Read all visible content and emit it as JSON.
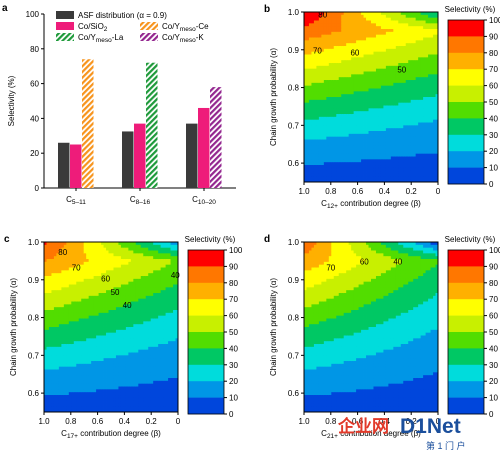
{
  "chart_data": [
    {
      "panel": "a",
      "type": "bar",
      "ylabel": "Selectivity (%)",
      "ylim": [
        0,
        100
      ],
      "yticks": [
        0,
        20,
        40,
        60,
        80,
        100
      ],
      "categories": [
        "C5–11",
        "C8–16",
        "C10–20"
      ],
      "series": [
        {
          "name": "ASF distribution (α = 0.9)",
          "color": "#3a3a3a",
          "pattern": "solid",
          "values": [
            26,
            32.5,
            37
          ]
        },
        {
          "name": "Co/SiO2",
          "color": "#ee1c7a",
          "pattern": "solid",
          "values": [
            25,
            37,
            46
          ]
        },
        {
          "name": "Co/Ymeso-Ce",
          "color": "#f7941d",
          "pattern": "hatch",
          "values": [
            74,
            null,
            null
          ]
        },
        {
          "name": "Co/Ymeso-La",
          "color": "#1e9a3a",
          "pattern": "hatch",
          "values": [
            null,
            72,
            null
          ]
        },
        {
          "name": "Co/Ymeso-K",
          "color": "#93268f",
          "pattern": "hatch",
          "values": [
            null,
            null,
            58
          ]
        }
      ],
      "legend_placement": "top",
      "grid": false
    },
    {
      "panel": "b",
      "type": "heatmap",
      "x_metric": "C12+ contribution degree (β)",
      "xlabel": "C12+ contribution degree (β)",
      "ylabel": "Chain growth probability (α)",
      "xlim": [
        1.0,
        0.0
      ],
      "ylim": [
        0.55,
        1.0
      ],
      "xticks": [
        "1.0",
        "0.8",
        "0.6",
        "0.4",
        "0.2",
        "0"
      ],
      "yticks": [
        "0.6",
        "0.7",
        "0.8",
        "0.9",
        "1.0"
      ],
      "contour_labels": [
        "80",
        "70",
        "60",
        "50"
      ],
      "colorbar_title": "Selectivity (%)"
    },
    {
      "panel": "c",
      "type": "heatmap",
      "x_metric": "C17+ contribution degree (β)",
      "xlabel": "C17+ contribution degree (β)",
      "ylabel": "Chain growth probability (α)",
      "xlim": [
        1.0,
        0.0
      ],
      "ylim": [
        0.55,
        1.0
      ],
      "xticks": [
        "1.0",
        "0.8",
        "0.6",
        "0.4",
        "0.2",
        "0"
      ],
      "yticks": [
        "0.6",
        "0.7",
        "0.8",
        "0.9",
        "1.0"
      ],
      "contour_labels": [
        "80",
        "70",
        "60",
        "50",
        "40",
        "40"
      ],
      "colorbar_title": "Selectivity (%)"
    },
    {
      "panel": "d",
      "type": "heatmap",
      "x_metric": "C21+ contribution degree (β)",
      "xlabel": "C21+ contribution degree (β)",
      "ylabel": "Chain growth probability (α)",
      "xlim": [
        1.0,
        0.0
      ],
      "ylim": [
        0.55,
        1.0
      ],
      "xticks": [
        "1.0",
        "0.8",
        "0.6",
        "0.4",
        "0.2",
        "0"
      ],
      "yticks": [
        "0.6",
        "0.7",
        "0.8",
        "0.9",
        "1.0"
      ],
      "contour_labels": [
        "70",
        "60",
        "40"
      ],
      "colorbar_title": "Selectivity (%)"
    }
  ],
  "colorbar": {
    "title": "Selectivity (%)",
    "ticks": [
      "100",
      "90",
      "80",
      "70",
      "60",
      "50",
      "40",
      "30",
      "20",
      "10",
      "0"
    ],
    "colors": [
      "#ff0000",
      "#ff7700",
      "#ffb000",
      "#ffff00",
      "#c8f000",
      "#52dd00",
      "#00c864",
      "#00dcdc",
      "#0096e6",
      "#0046dc",
      "#0000cc"
    ]
  },
  "watermark": {
    "cn": "企业网",
    "brand": "D1Net",
    "sub": "第 1 门 户"
  }
}
